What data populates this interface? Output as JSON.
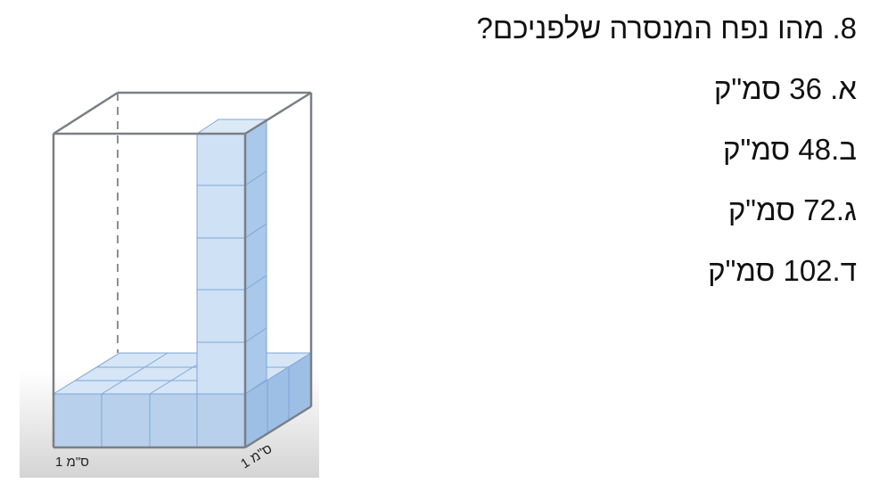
{
  "question": {
    "number": "8.",
    "text": "8. מהו נפח המנסרה שלפניכם?"
  },
  "answers": [
    {
      "id": "a",
      "text": "א. 36 סמ\"ק"
    },
    {
      "id": "b",
      "text": "ב.48 סמ\"ק"
    },
    {
      "id": "c",
      "text": "ג.72 סמ\"ק"
    },
    {
      "id": "d",
      "text": "ד.102 סמ\"ק"
    }
  ],
  "figure": {
    "bottom_label": "1 ס\"מ",
    "depth_label": "1 ס\"מ",
    "colors": {
      "edge": "#7a7f86",
      "cube_front": "#b8d0ec",
      "cube_side": "#9dbfe6",
      "cube_top": "#d6e6f7",
      "cube_line": "#7ea6d6",
      "floor_shade": "#d9d9d9"
    }
  }
}
